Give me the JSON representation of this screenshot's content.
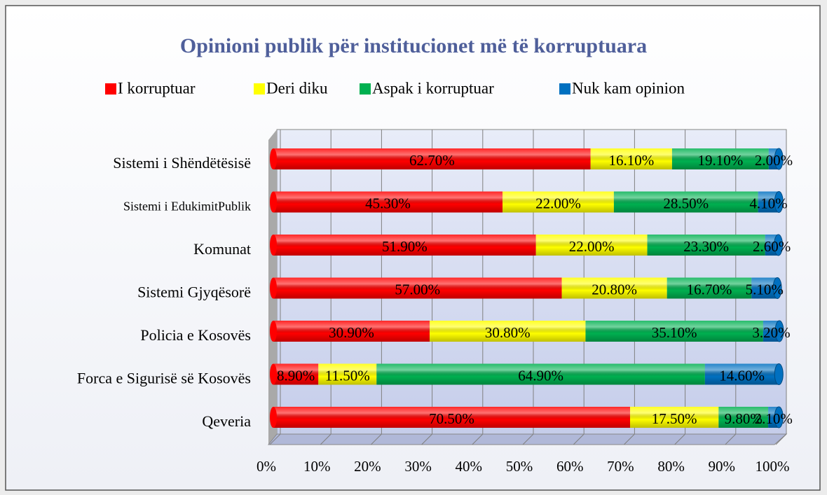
{
  "chart_data": {
    "type": "bar",
    "orientation": "horizontal",
    "stacked": true,
    "title": "Opinioni publik për institucionet më të korruptuara",
    "categories": [
      "Sistemi i Shëndëtësisë",
      "Sistemi i EdukimitPublik",
      "Komunat",
      "Sistemi Gjyqësorë",
      "Policia e Kosovës",
      "Forca e Sigurisë së Kosovës",
      "Qeveria"
    ],
    "series": [
      {
        "name": "I korruptuar",
        "color": "#ff0000",
        "values": [
          62.7,
          45.3,
          51.9,
          57.0,
          30.9,
          8.9,
          70.5
        ],
        "value_labels": [
          "62.70%",
          "45.30%",
          "51.90%",
          "57.00%",
          "30.90%",
          "8.90%",
          "70.50%"
        ]
      },
      {
        "name": "Deri diku",
        "color": "#ffff00",
        "values": [
          16.1,
          22.0,
          22.0,
          20.8,
          30.8,
          11.5,
          17.5
        ],
        "value_labels": [
          "16.10%",
          "22.00%",
          "22.00%",
          "20.80%",
          "30.80%",
          "11.50%",
          "17.50%"
        ]
      },
      {
        "name": "Aspak i korruptuar",
        "color": "#00b050",
        "values": [
          19.1,
          28.5,
          23.3,
          16.7,
          35.1,
          64.9,
          9.8
        ],
        "value_labels": [
          "19.10%",
          "28.50%",
          "23.30%",
          "16.70%",
          "35.10%",
          "64.90%",
          "9.80%"
        ]
      },
      {
        "name": "Nuk kam opinion",
        "color": "#0070c0",
        "values": [
          2.0,
          4.1,
          2.6,
          5.1,
          3.2,
          14.6,
          2.1
        ],
        "value_labels": [
          "2.00%",
          "4.10%",
          "2.60%",
          "5.10%",
          "3.20%",
          "14.60%",
          "2.10%"
        ]
      }
    ],
    "xlim": [
      0,
      100
    ],
    "xticks": [
      {
        "value": 0,
        "label": "0%"
      },
      {
        "value": 10,
        "label": "10%"
      },
      {
        "value": 20,
        "label": "20%"
      },
      {
        "value": 30,
        "label": "30%"
      },
      {
        "value": 40,
        "label": "40%"
      },
      {
        "value": 50,
        "label": "50%"
      },
      {
        "value": 60,
        "label": "60%"
      },
      {
        "value": 70,
        "label": "70%"
      },
      {
        "value": 80,
        "label": "80%"
      },
      {
        "value": 90,
        "label": "90%"
      },
      {
        "value": 100,
        "label": "100%"
      }
    ],
    "grid": true,
    "legend": "top"
  }
}
